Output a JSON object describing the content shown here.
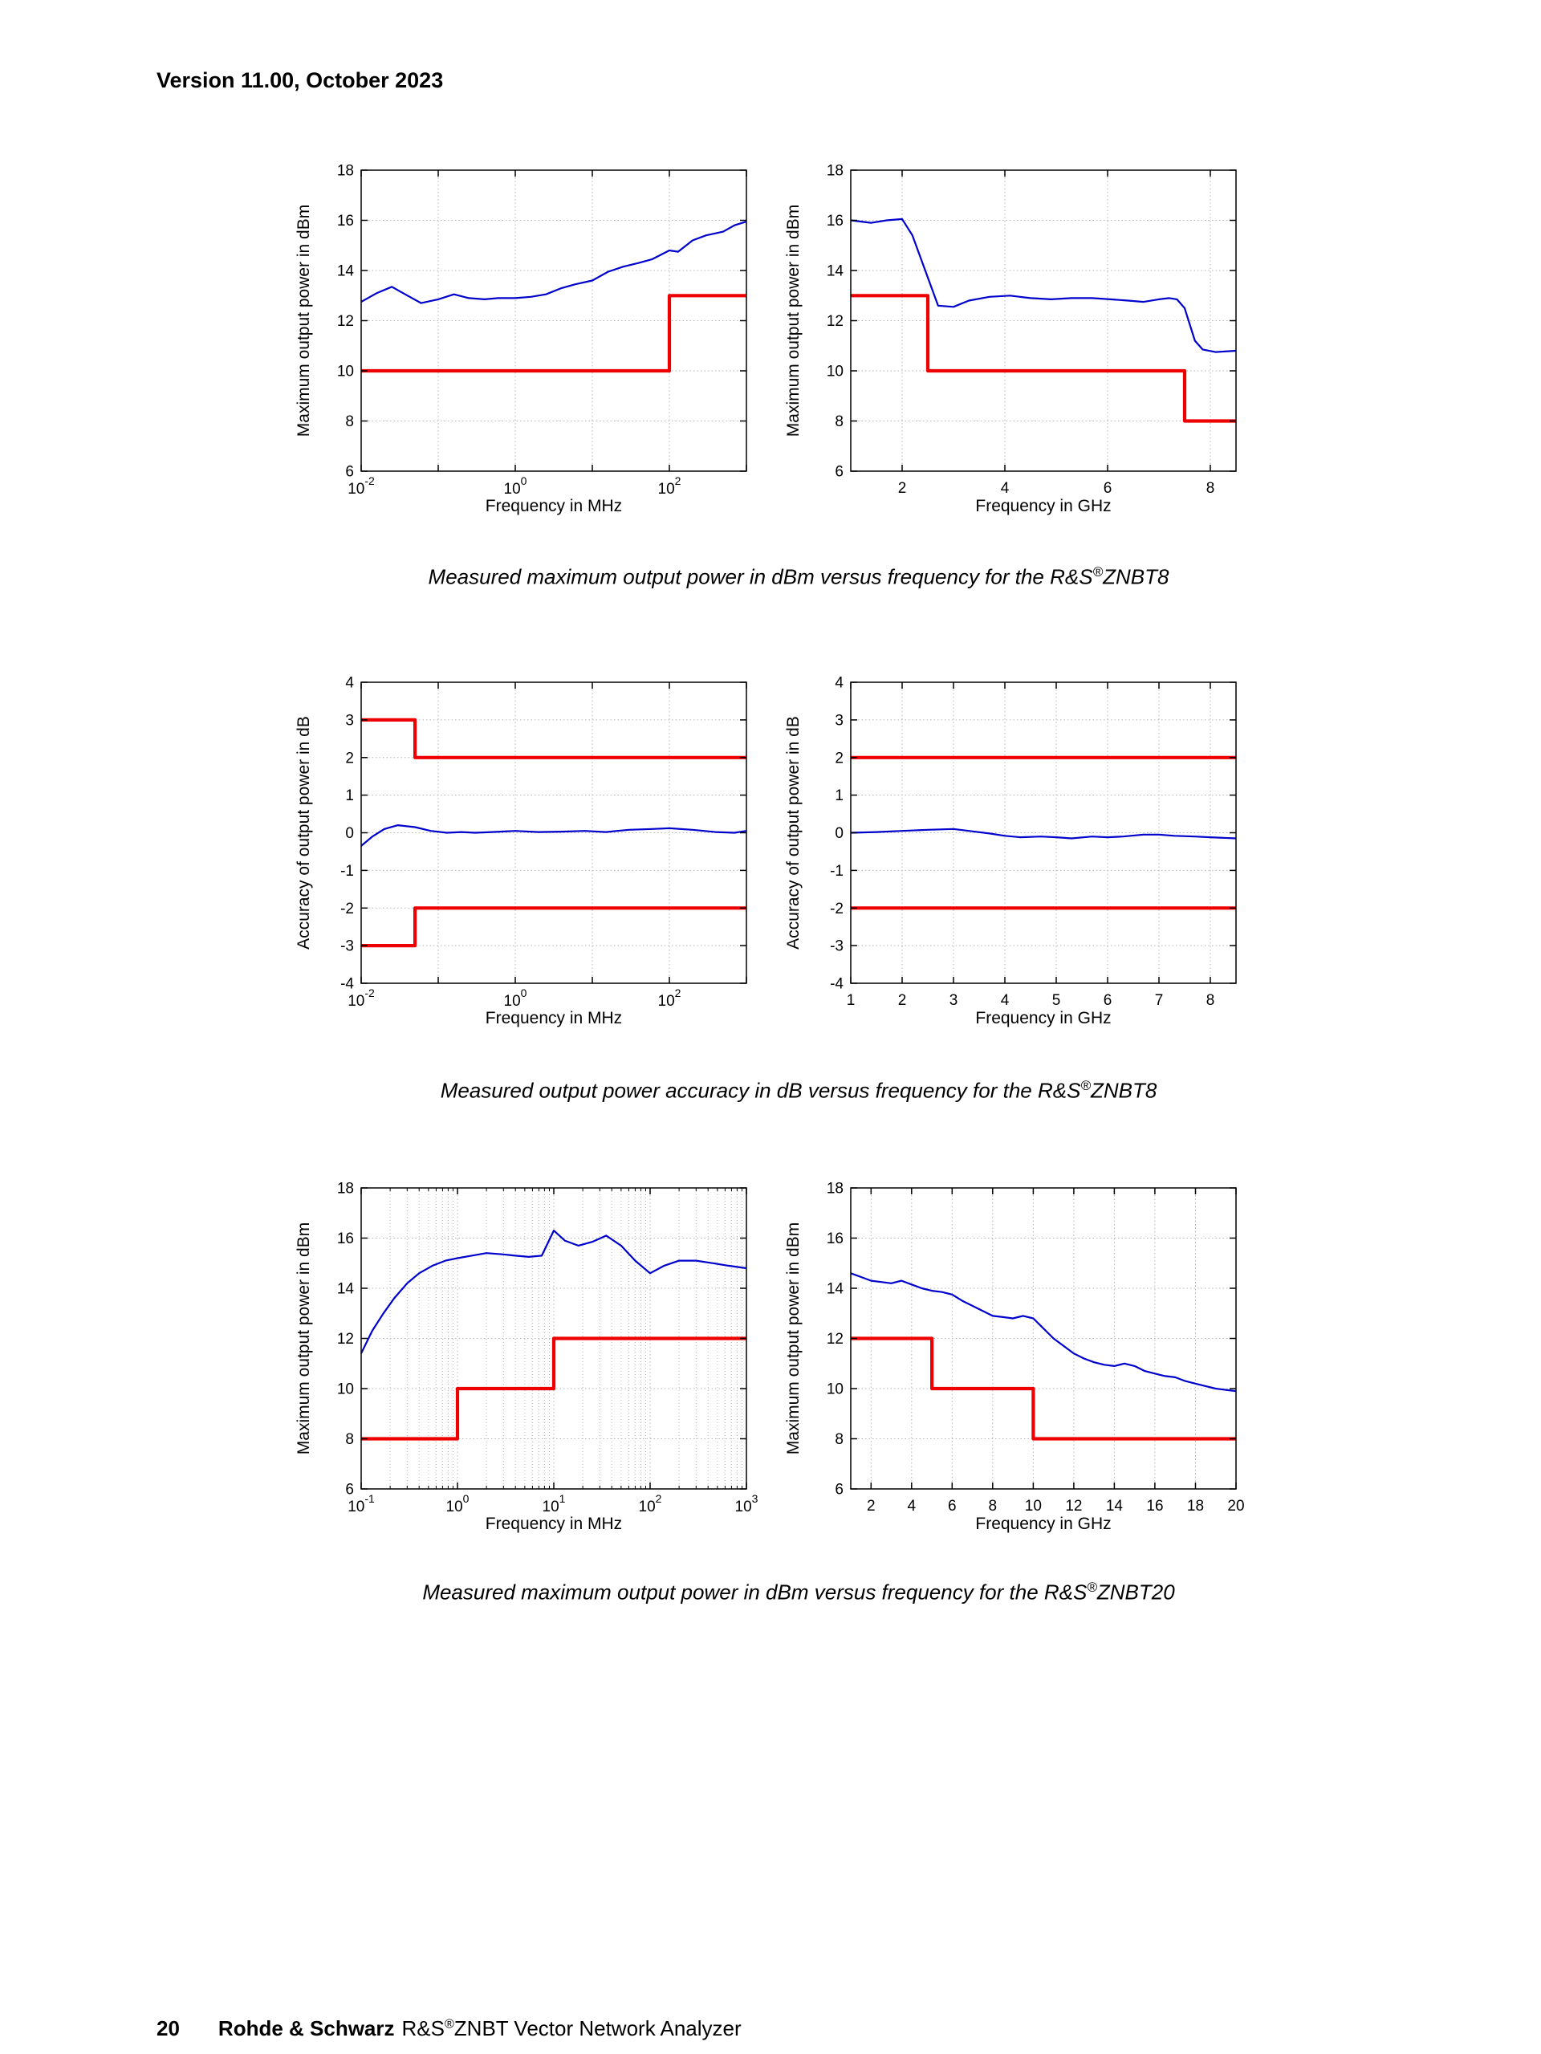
{
  "page": {
    "header": "Version 11.00, October 2023",
    "footer": {
      "page_number": "20",
      "brand": "Rohde & Schwarz",
      "product_pre": "R&S",
      "product_sup": "®",
      "product_post": "ZNBT Vector Network Analyzer"
    }
  },
  "captions": [
    {
      "pre": "Measured maximum output power in dBm versus frequency for the R&S",
      "sup": "®",
      "post": "ZNBT8"
    },
    {
      "pre": "Measured output power accuracy in dB versus frequency for the R&S",
      "sup": "®",
      "post": "ZNBT8"
    },
    {
      "pre": "Measured maximum output power in dBm versus frequency for the R&S",
      "sup": "®",
      "post": "ZNBT20"
    }
  ],
  "colors": {
    "measured": "#0000CD",
    "limit": "#EE0000",
    "grid": "#b4b4b4",
    "axis": "#000000"
  },
  "chart_data": [
    {
      "id": "znbt8-max-power-mhz",
      "type": "line",
      "xlabel": "Frequency in MHz",
      "ylabel": "Maximum output power in dBm",
      "xscale": "log",
      "xlim": [
        0.01,
        1000
      ],
      "xticks": [
        0.01,
        1,
        100
      ],
      "xminor": false,
      "ylim": [
        6,
        18
      ],
      "yticks": [
        6,
        8,
        10,
        12,
        14,
        16,
        18
      ],
      "grid": true,
      "series": [
        {
          "name": "limit",
          "color_key": "limit",
          "points": [
            [
              0.01,
              10
            ],
            [
              100,
              10
            ],
            [
              100,
              13
            ],
            [
              1000,
              13
            ]
          ]
        },
        {
          "name": "measured",
          "color_key": "measured",
          "points": [
            [
              0.01,
              12.75
            ],
            [
              0.016,
              13.1
            ],
            [
              0.025,
              13.35
            ],
            [
              0.04,
              13.0
            ],
            [
              0.06,
              12.7
            ],
            [
              0.1,
              12.85
            ],
            [
              0.16,
              13.05
            ],
            [
              0.25,
              12.9
            ],
            [
              0.4,
              12.85
            ],
            [
              0.6,
              12.9
            ],
            [
              1,
              12.9
            ],
            [
              1.6,
              12.95
            ],
            [
              2.5,
              13.05
            ],
            [
              4,
              13.3
            ],
            [
              6,
              13.45
            ],
            [
              10,
              13.6
            ],
            [
              16,
              13.95
            ],
            [
              25,
              14.15
            ],
            [
              40,
              14.3
            ],
            [
              60,
              14.45
            ],
            [
              100,
              14.8
            ],
            [
              130,
              14.75
            ],
            [
              200,
              15.2
            ],
            [
              300,
              15.4
            ],
            [
              500,
              15.55
            ],
            [
              700,
              15.8
            ],
            [
              1000,
              15.95
            ]
          ]
        }
      ]
    },
    {
      "id": "znbt8-max-power-ghz",
      "type": "line",
      "xlabel": "Frequency in GHz",
      "ylabel": "Maximum output power in dBm",
      "xscale": "linear",
      "xlim": [
        1,
        8.5
      ],
      "xticks": [
        2,
        4,
        6,
        8
      ],
      "xminor": false,
      "ylim": [
        6,
        18
      ],
      "yticks": [
        6,
        8,
        10,
        12,
        14,
        16,
        18
      ],
      "grid": true,
      "series": [
        {
          "name": "limit",
          "color_key": "limit",
          "points": [
            [
              1,
              13
            ],
            [
              2.5,
              13
            ],
            [
              2.5,
              10
            ],
            [
              7.5,
              10
            ],
            [
              7.5,
              8
            ],
            [
              8.5,
              8
            ]
          ]
        },
        {
          "name": "measured",
          "color_key": "measured",
          "points": [
            [
              1,
              16.0
            ],
            [
              1.4,
              15.9
            ],
            [
              1.7,
              16.0
            ],
            [
              2.0,
              16.05
            ],
            [
              2.2,
              15.4
            ],
            [
              2.45,
              14.0
            ],
            [
              2.7,
              12.6
            ],
            [
              3.0,
              12.55
            ],
            [
              3.3,
              12.8
            ],
            [
              3.7,
              12.95
            ],
            [
              4.1,
              13.0
            ],
            [
              4.5,
              12.9
            ],
            [
              4.9,
              12.85
            ],
            [
              5.3,
              12.9
            ],
            [
              5.7,
              12.9
            ],
            [
              6.05,
              12.85
            ],
            [
              6.4,
              12.8
            ],
            [
              6.7,
              12.75
            ],
            [
              7.0,
              12.85
            ],
            [
              7.2,
              12.9
            ],
            [
              7.35,
              12.85
            ],
            [
              7.5,
              12.5
            ],
            [
              7.7,
              11.2
            ],
            [
              7.85,
              10.85
            ],
            [
              8.1,
              10.75
            ],
            [
              8.5,
              10.8
            ]
          ]
        }
      ]
    },
    {
      "id": "znbt8-accuracy-mhz",
      "type": "line",
      "xlabel": "Frequency in MHz",
      "ylabel": "Accuracy of output power in dB",
      "xscale": "log",
      "xlim": [
        0.01,
        1000
      ],
      "xticks": [
        0.01,
        1,
        100
      ],
      "xminor": false,
      "ylim": [
        -4,
        4
      ],
      "yticks": [
        -4,
        -3,
        -2,
        -1,
        0,
        1,
        2,
        3,
        4
      ],
      "grid": true,
      "series": [
        {
          "name": "limit-upper",
          "color_key": "limit",
          "points": [
            [
              0.01,
              3
            ],
            [
              0.05,
              3
            ],
            [
              0.05,
              2
            ],
            [
              1000,
              2
            ]
          ]
        },
        {
          "name": "limit-lower",
          "color_key": "limit",
          "points": [
            [
              0.01,
              -3
            ],
            [
              0.05,
              -3
            ],
            [
              0.05,
              -2
            ],
            [
              1000,
              -2
            ]
          ]
        },
        {
          "name": "measured",
          "color_key": "measured",
          "points": [
            [
              0.01,
              -0.35
            ],
            [
              0.014,
              -0.1
            ],
            [
              0.02,
              0.1
            ],
            [
              0.03,
              0.2
            ],
            [
              0.05,
              0.15
            ],
            [
              0.08,
              0.05
            ],
            [
              0.13,
              0.0
            ],
            [
              0.2,
              0.02
            ],
            [
              0.3,
              0.0
            ],
            [
              0.5,
              0.02
            ],
            [
              1,
              0.05
            ],
            [
              2,
              0.02
            ],
            [
              4,
              0.03
            ],
            [
              8,
              0.05
            ],
            [
              15,
              0.02
            ],
            [
              30,
              0.08
            ],
            [
              60,
              0.1
            ],
            [
              100,
              0.12
            ],
            [
              200,
              0.08
            ],
            [
              400,
              0.02
            ],
            [
              700,
              0.0
            ],
            [
              1000,
              0.05
            ]
          ]
        }
      ]
    },
    {
      "id": "znbt8-accuracy-ghz",
      "type": "line",
      "xlabel": "Frequency in GHz",
      "ylabel": "Accuracy of output power in dB",
      "xscale": "linear",
      "xlim": [
        1,
        8.5
      ],
      "xticks": [
        1,
        2,
        3,
        4,
        5,
        6,
        7,
        8
      ],
      "xminor": false,
      "ylim": [
        -4,
        4
      ],
      "yticks": [
        -4,
        -3,
        -2,
        -1,
        0,
        1,
        2,
        3,
        4
      ],
      "grid": true,
      "series": [
        {
          "name": "limit-upper",
          "color_key": "limit",
          "points": [
            [
              1,
              2
            ],
            [
              8.5,
              2
            ]
          ]
        },
        {
          "name": "limit-lower",
          "color_key": "limit",
          "points": [
            [
              1,
              -2
            ],
            [
              8.5,
              -2
            ]
          ]
        },
        {
          "name": "measured",
          "color_key": "measured",
          "points": [
            [
              1,
              0.0
            ],
            [
              1.5,
              0.02
            ],
            [
              2,
              0.05
            ],
            [
              2.5,
              0.08
            ],
            [
              3,
              0.1
            ],
            [
              3.3,
              0.05
            ],
            [
              3.7,
              -0.02
            ],
            [
              4,
              -0.08
            ],
            [
              4.3,
              -0.12
            ],
            [
              4.7,
              -0.1
            ],
            [
              5,
              -0.12
            ],
            [
              5.3,
              -0.15
            ],
            [
              5.7,
              -0.1
            ],
            [
              6,
              -0.12
            ],
            [
              6.3,
              -0.1
            ],
            [
              6.7,
              -0.05
            ],
            [
              7,
              -0.05
            ],
            [
              7.3,
              -0.08
            ],
            [
              7.7,
              -0.1
            ],
            [
              8,
              -0.12
            ],
            [
              8.5,
              -0.15
            ]
          ]
        }
      ]
    },
    {
      "id": "znbt20-max-power-mhz",
      "type": "line",
      "xlabel": "Frequency in MHz",
      "ylabel": "Maximum output power in dBm",
      "xscale": "log",
      "xlim": [
        0.1,
        1000
      ],
      "xticks": [
        0.1,
        1,
        10,
        100,
        1000
      ],
      "xminor": true,
      "ylim": [
        6,
        18
      ],
      "yticks": [
        6,
        8,
        10,
        12,
        14,
        16,
        18
      ],
      "grid": true,
      "series": [
        {
          "name": "limit",
          "color_key": "limit",
          "points": [
            [
              0.1,
              8
            ],
            [
              1,
              8
            ],
            [
              1,
              10
            ],
            [
              10,
              10
            ],
            [
              10,
              12
            ],
            [
              1000,
              12
            ]
          ]
        },
        {
          "name": "measured",
          "color_key": "measured",
          "points": [
            [
              0.1,
              11.4
            ],
            [
              0.13,
              12.3
            ],
            [
              0.17,
              13.0
            ],
            [
              0.22,
              13.6
            ],
            [
              0.3,
              14.2
            ],
            [
              0.4,
              14.6
            ],
            [
              0.55,
              14.9
            ],
            [
              0.75,
              15.1
            ],
            [
              1,
              15.2
            ],
            [
              1.4,
              15.3
            ],
            [
              2,
              15.4
            ],
            [
              3,
              15.35
            ],
            [
              4,
              15.3
            ],
            [
              5.5,
              15.25
            ],
            [
              7.5,
              15.3
            ],
            [
              10,
              16.3
            ],
            [
              13,
              15.9
            ],
            [
              18,
              15.7
            ],
            [
              25,
              15.85
            ],
            [
              35,
              16.1
            ],
            [
              50,
              15.7
            ],
            [
              70,
              15.1
            ],
            [
              100,
              14.6
            ],
            [
              140,
              14.9
            ],
            [
              200,
              15.1
            ],
            [
              300,
              15.1
            ],
            [
              450,
              15.0
            ],
            [
              650,
              14.9
            ],
            [
              1000,
              14.8
            ]
          ]
        }
      ]
    },
    {
      "id": "znbt20-max-power-ghz",
      "type": "line",
      "xlabel": "Frequency in GHz",
      "ylabel": "Maximum output power in dBm",
      "xscale": "linear",
      "xlim": [
        1,
        20
      ],
      "xticks": [
        2,
        4,
        6,
        8,
        10,
        12,
        14,
        16,
        18,
        20
      ],
      "xminor": false,
      "ylim": [
        6,
        18
      ],
      "yticks": [
        6,
        8,
        10,
        12,
        14,
        16,
        18
      ],
      "grid": true,
      "series": [
        {
          "name": "limit",
          "color_key": "limit",
          "points": [
            [
              1,
              12
            ],
            [
              5,
              12
            ],
            [
              5,
              10
            ],
            [
              10,
              10
            ],
            [
              10,
              8
            ],
            [
              20,
              8
            ]
          ]
        },
        {
          "name": "measured",
          "color_key": "measured",
          "points": [
            [
              1,
              14.6
            ],
            [
              1.5,
              14.45
            ],
            [
              2,
              14.3
            ],
            [
              2.5,
              14.25
            ],
            [
              3,
              14.2
            ],
            [
              3.5,
              14.3
            ],
            [
              4,
              14.15
            ],
            [
              4.5,
              14.0
            ],
            [
              5,
              13.9
            ],
            [
              5.5,
              13.85
            ],
            [
              6,
              13.75
            ],
            [
              6.5,
              13.5
            ],
            [
              7,
              13.3
            ],
            [
              7.5,
              13.1
            ],
            [
              8,
              12.9
            ],
            [
              8.5,
              12.85
            ],
            [
              9,
              12.8
            ],
            [
              9.5,
              12.9
            ],
            [
              10,
              12.8
            ],
            [
              10.5,
              12.4
            ],
            [
              11,
              12.0
            ],
            [
              11.5,
              11.7
            ],
            [
              12,
              11.4
            ],
            [
              12.5,
              11.2
            ],
            [
              13,
              11.05
            ],
            [
              13.5,
              10.95
            ],
            [
              14,
              10.9
            ],
            [
              14.5,
              11.0
            ],
            [
              15,
              10.9
            ],
            [
              15.5,
              10.7
            ],
            [
              16,
              10.6
            ],
            [
              16.5,
              10.5
            ],
            [
              17,
              10.45
            ],
            [
              17.5,
              10.3
            ],
            [
              18,
              10.2
            ],
            [
              18.5,
              10.1
            ],
            [
              19,
              10.0
            ],
            [
              19.5,
              9.95
            ],
            [
              20,
              9.9
            ]
          ]
        }
      ]
    }
  ]
}
